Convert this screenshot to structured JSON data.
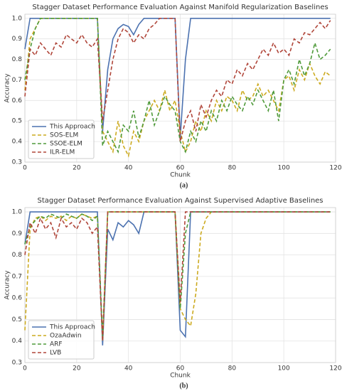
{
  "chart_data": [
    {
      "type": "line",
      "title": "Stagger Dataset Performance Evaluation Against Manifold Regularization Baselines",
      "x_label": "Chunk",
      "y_label": "Accuracy",
      "caption": "(a)",
      "x": [
        0,
        2,
        4,
        6,
        8,
        10,
        12,
        14,
        16,
        18,
        20,
        22,
        24,
        26,
        28,
        30,
        32,
        34,
        36,
        38,
        40,
        42,
        44,
        46,
        48,
        50,
        52,
        54,
        56,
        58,
        60,
        62,
        64,
        66,
        68,
        70,
        72,
        74,
        76,
        78,
        80,
        82,
        84,
        86,
        88,
        90,
        92,
        94,
        96,
        98,
        100,
        102,
        104,
        106,
        108,
        110,
        112,
        114,
        116,
        118
      ],
      "xlim": [
        0,
        120
      ],
      "xticks": [
        0,
        20,
        40,
        60,
        80,
        100,
        120
      ],
      "ylim": [
        0.3,
        1.02
      ],
      "yticks": [
        0.3,
        0.4,
        0.5,
        0.6,
        0.7,
        0.8,
        0.9,
        {
          "value": 1,
          "label": "1.0"
        }
      ],
      "grid": true,
      "legend": "lower left",
      "series": [
        {
          "name": "This Approach",
          "color": "#4c72b0",
          "style": "solid",
          "values": [
            0.85,
            1,
            1,
            1,
            1,
            1,
            1,
            1,
            1,
            1,
            1,
            1,
            1,
            1,
            1,
            0.45,
            0.75,
            0.9,
            0.95,
            0.97,
            0.96,
            0.92,
            0.97,
            1,
            1,
            1,
            1,
            1,
            1,
            1,
            0.42,
            0.8,
            1,
            1,
            1,
            1,
            1,
            1,
            1,
            1,
            1,
            1,
            1,
            1,
            1,
            1,
            1,
            1,
            1,
            1,
            1,
            1,
            1,
            1,
            1,
            1,
            1,
            1,
            1,
            1
          ]
        },
        {
          "name": "SOS-ELM",
          "color": "#ccaa1f",
          "style": "dashed",
          "values": [
            0.65,
            0.9,
            0.95,
            1,
            1,
            1,
            1,
            1,
            1,
            1,
            1,
            1,
            1,
            1,
            1,
            0.45,
            0.4,
            0.35,
            0.5,
            0.38,
            0.33,
            0.45,
            0.4,
            0.5,
            0.55,
            0.6,
            0.55,
            0.65,
            0.55,
            0.6,
            0.45,
            0.35,
            0.4,
            0.5,
            0.45,
            0.55,
            0.5,
            0.6,
            0.55,
            0.62,
            0.6,
            0.55,
            0.65,
            0.6,
            0.62,
            0.68,
            0.62,
            0.65,
            0.6,
            0.55,
            0.7,
            0.72,
            0.65,
            0.75,
            0.7,
            0.78,
            0.72,
            0.68,
            0.74,
            0.72
          ]
        },
        {
          "name": "SSOE-ELM",
          "color": "#4f9a3a",
          "style": "dashed",
          "values": [
            0.7,
            0.85,
            0.95,
            1,
            1,
            1,
            1,
            1,
            1,
            1,
            1,
            1,
            1,
            1,
            1,
            0.38,
            0.45,
            0.4,
            0.35,
            0.48,
            0.45,
            0.55,
            0.42,
            0.5,
            0.6,
            0.48,
            0.55,
            0.62,
            0.58,
            0.55,
            0.4,
            0.35,
            0.45,
            0.4,
            0.5,
            0.45,
            0.55,
            0.5,
            0.6,
            0.55,
            0.62,
            0.58,
            0.55,
            0.62,
            0.58,
            0.65,
            0.6,
            0.55,
            0.65,
            0.5,
            0.7,
            0.75,
            0.68,
            0.8,
            0.72,
            0.78,
            0.88,
            0.8,
            0.82,
            0.85
          ]
        },
        {
          "name": "ILR-ELM",
          "color": "#b0463a",
          "style": "dashed",
          "values": [
            0.62,
            0.85,
            0.82,
            0.88,
            0.85,
            0.82,
            0.88,
            0.86,
            0.92,
            0.9,
            0.88,
            0.92,
            0.88,
            0.86,
            0.9,
            0.5,
            0.65,
            0.8,
            0.9,
            0.95,
            0.93,
            0.88,
            0.92,
            0.9,
            0.95,
            0.97,
            1,
            1,
            1,
            1,
            0.4,
            0.5,
            0.55,
            0.45,
            0.58,
            0.52,
            0.6,
            0.65,
            0.62,
            0.7,
            0.68,
            0.75,
            0.72,
            0.78,
            0.75,
            0.8,
            0.85,
            0.82,
            0.88,
            0.83,
            0.85,
            0.82,
            0.9,
            0.88,
            0.93,
            0.92,
            0.95,
            0.98,
            0.95,
            0.99
          ]
        }
      ]
    },
    {
      "type": "line",
      "title": "Stagger Dataset Performance Evaluation Against Supervised Adaptive Baselines",
      "x_label": "Chunk",
      "y_label": "Accuracy",
      "caption": "(b)",
      "x": [
        0,
        2,
        4,
        6,
        8,
        10,
        12,
        14,
        16,
        18,
        20,
        22,
        24,
        26,
        28,
        30,
        32,
        34,
        36,
        38,
        40,
        42,
        44,
        46,
        48,
        50,
        52,
        54,
        56,
        58,
        60,
        62,
        64,
        66,
        68,
        70,
        72,
        74,
        76,
        78,
        80,
        82,
        84,
        86,
        88,
        90,
        92,
        94,
        96,
        98,
        100,
        102,
        104,
        106,
        108,
        110,
        112,
        114,
        116,
        118
      ],
      "xlim": [
        0,
        120
      ],
      "xticks": [
        0,
        20,
        40,
        60,
        80,
        100,
        120
      ],
      "ylim": [
        0.3,
        1.02
      ],
      "yticks": [
        0.3,
        0.4,
        0.5,
        0.6,
        0.7,
        0.8,
        0.9,
        {
          "value": 1,
          "label": "1.0"
        }
      ],
      "grid": true,
      "legend": "lower left",
      "series": [
        {
          "name": "This Approach",
          "color": "#4c72b0",
          "style": "solid",
          "values": [
            0.85,
            1,
            1,
            1,
            1,
            1,
            1,
            1,
            1,
            1,
            1,
            1,
            1,
            1,
            1,
            0.38,
            0.92,
            0.87,
            0.95,
            0.93,
            0.96,
            0.94,
            0.9,
            1,
            1,
            1,
            1,
            1,
            1,
            1,
            0.45,
            0.42,
            1,
            1,
            1,
            1,
            1,
            1,
            1,
            1,
            1,
            1,
            1,
            1,
            1,
            1,
            1,
            1,
            1,
            1,
            1,
            1,
            1,
            1,
            1,
            1,
            1,
            1,
            1,
            1
          ]
        },
        {
          "name": "OzaAdwin",
          "color": "#ccaa1f",
          "style": "dashed",
          "values": [
            0.45,
            0.92,
            0.97,
            0.98,
            0.96,
            0.98,
            0.97,
            0.98,
            0.96,
            0.98,
            0.97,
            0.99,
            0.98,
            0.97,
            0.98,
            0.4,
            1,
            1,
            1,
            1,
            1,
            1,
            1,
            1,
            1,
            1,
            1,
            1,
            1,
            1,
            0.55,
            0.5,
            0.47,
            0.62,
            0.9,
            0.97,
            1,
            1,
            1,
            1,
            1,
            1,
            1,
            1,
            1,
            1,
            1,
            1,
            1,
            1,
            1,
            1,
            1,
            1,
            1,
            1,
            1,
            1,
            1,
            1
          ]
        },
        {
          "name": "ARF",
          "color": "#4f9a3a",
          "style": "dashed",
          "values": [
            0.85,
            0.93,
            0.96,
            0.98,
            0.97,
            0.99,
            0.98,
            0.97,
            0.99,
            0.98,
            0.97,
            0.99,
            0.98,
            0.96,
            0.98,
            0.42,
            1,
            1,
            1,
            1,
            1,
            1,
            1,
            1,
            1,
            1,
            1,
            1,
            1,
            1,
            0.55,
            0.9,
            1,
            1,
            1,
            1,
            1,
            1,
            1,
            1,
            1,
            1,
            1,
            1,
            1,
            1,
            1,
            1,
            1,
            1,
            1,
            1,
            1,
            1,
            1,
            1,
            1,
            1,
            1,
            1
          ]
        },
        {
          "name": "LVB",
          "color": "#b0463a",
          "style": "dashed",
          "values": [
            0.8,
            0.95,
            0.9,
            0.97,
            0.92,
            0.95,
            0.88,
            0.97,
            0.93,
            0.95,
            0.92,
            0.97,
            0.95,
            0.9,
            0.93,
            0.4,
            1,
            1,
            1,
            1,
            1,
            1,
            1,
            1,
            1,
            1,
            1,
            1,
            1,
            1,
            0.58,
            1,
            1,
            1,
            1,
            1,
            1,
            1,
            1,
            1,
            1,
            1,
            1,
            1,
            1,
            1,
            1,
            1,
            1,
            1,
            1,
            1,
            1,
            1,
            1,
            1,
            1,
            1,
            1,
            1
          ]
        }
      ]
    }
  ]
}
